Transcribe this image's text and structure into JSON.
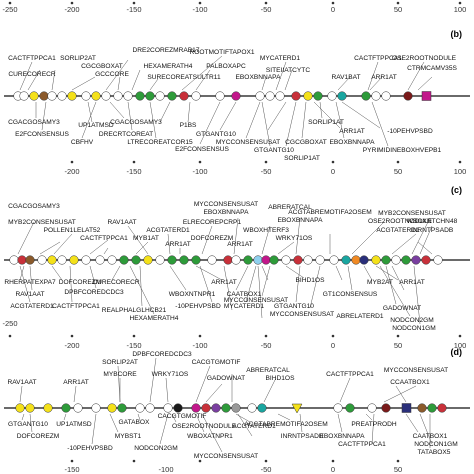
{
  "colors": {
    "line": "#111111",
    "yellow": "#f4e11a",
    "green": "#2e9b3a",
    "white": "#ffffff",
    "red": "#c8313a",
    "brown": "#8b5a2b",
    "magenta": "#c2188b",
    "teal": "#1aa6a0",
    "orange": "#f08a24",
    "darkred": "#7a1a1a",
    "lightblue": "#8fd0ee",
    "gray": "#9a9a9a",
    "black": "#1a1a1a",
    "navy": "#2a2f7a",
    "purple": "#7a3fa0"
  },
  "axis_top": {
    "ticks": [
      "-250",
      "-200",
      "-150",
      "-100",
      "-50",
      "0",
      "50",
      "100"
    ]
  },
  "panel_b": {
    "letter": "(b)",
    "ticks": [
      "-200",
      "-150",
      "-100",
      "-50",
      "0",
      "50",
      "100"
    ],
    "labels": [
      "CACTFTPPCA1",
      "SORLIP2AT",
      "CGCGBOXAT",
      "DRE2COREZMRAB17",
      "ROOTMOTIFTAPOX1",
      "MYCATERD1",
      "CACTFTPPCA1",
      "OSE2ROOTNODULE",
      "CURECORECR",
      "GCCCORE",
      "HEXAMERATH4",
      "SURECOREATSULTR11",
      "PALBOXAPC",
      "SITEIIATCYTC",
      "EBOXBNNAPA",
      "RAV1BAT",
      "ARR1AT",
      "CTRMCAMV35S",
      "CGACGOSAMY3",
      "UP1ATMSD",
      "CGACGOSAMY3",
      "P1BS",
      "GTGANTG10",
      "SORLIP1AT",
      "ARR1AT",
      "-10PEHVPSBD",
      "E2FCONSENSUS",
      "CBFHV",
      "DRECRTCOREAT",
      "LTRECOREATCOR15",
      "E2FCONSENSUS",
      "MYCCONSENSUSAT",
      "CGCGBOXAT",
      "EBOXBNNAPA",
      "GTGANTG10",
      "SORLIP1AT",
      "PYRIMIDINEBOXHVEPB1"
    ]
  },
  "panel_c": {
    "letter": "(c)",
    "ticks": [
      "-200",
      "-150",
      "-100",
      "-50",
      "0",
      "50",
      "100"
    ],
    "labels": [
      "CGACGOSAMY3",
      "EBOXBNNAPA",
      "MYCCONSENSUSAT",
      "ACGTABREMOTIFA2OSEM",
      "MYB2CONSENSUSAT",
      "POLLEN1LELAT52",
      "RAV1AAT",
      "ABRERATCAL",
      "WBOXNTCHN48",
      "MYB2CONSENSUSAT",
      "CACTFTPPCA1",
      "ACGTATERD1",
      "ELRECOREPCRP1",
      "EBOXBNNAPA",
      "OSE2ROOTNODULE",
      "INRNTPSADB",
      "MYB1AT",
      "ARR1AT",
      "DOFCOREZM",
      "WBOXHTERF3",
      "ARR1AT",
      "ACGTATERD1",
      "WRKY71OS",
      "RHERPATEXPA7",
      "DOFCOREZM",
      "CURECORECR",
      "ARR1AT",
      "BIHD1OS",
      "MYB2AT",
      "ARR1AT",
      "RAV1AAT",
      "DPBFCOREDCDC3",
      "WBOXNTNPR1",
      "CAATBOX1",
      "MYCCONSENSUSAT",
      "GT1CONSENSUS",
      "ACGTATERD1",
      "CACTFTPPCA1",
      "REALPHALGLHCB21",
      "-10PEHVPSBD",
      "MYCATERD1",
      "GTGANTG10",
      "GADOWNAT",
      "MYCCONSENSUSAT",
      "HEXAMERATH4",
      "ABRELATERD1",
      "NODCON2GM",
      "NODCON1GM"
    ]
  },
  "panel_d": {
    "letter": "(d)",
    "ticks": [
      "-250",
      "-200",
      "-150",
      "-100",
      "-50",
      "0",
      "50",
      "100"
    ],
    "labels": [
      "DPBFCOREDCDC3",
      "SORLIP2AT",
      "CACGTGMOTIF",
      "ABRERATCAL",
      "BIHD1OS",
      "MYCCONSENSUSAT",
      "RAV1AAT",
      "ARR1AT",
      "MYBCORE",
      "WRKY71OS",
      "GADOWNAT",
      "CACTFTPPCA1",
      "CCAATBOX1",
      "GTGANTG10",
      "UP1ATMSD",
      "GATABOX",
      "CACGTGMOTIF",
      "ACGTABREMOTIFA2OSEM",
      "PREATPRODH",
      "DOFCOREZM",
      "MYBST1",
      "OSE2ROOTNODULE",
      "WBOXATNPR1",
      "ACGTATERD1",
      "INRNTPSADB",
      "EBOXBNNAPA",
      "CACTFTPPCA1",
      "CAATBOX1",
      "-10PEHVPSBD",
      "NODCON2GM",
      "MYCCONSENSUSAT",
      "NODCON1GM",
      "TATABOX5"
    ]
  },
  "axis_bottom": {
    "ticks": [
      "-150",
      "-100",
      "-50",
      "0",
      "50"
    ]
  }
}
